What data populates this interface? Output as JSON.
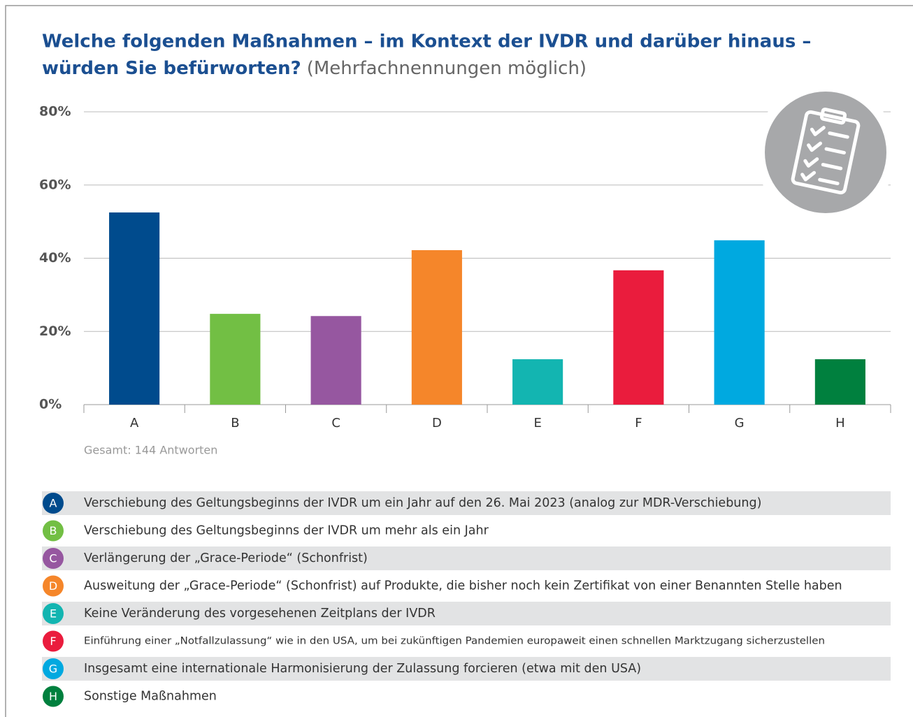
{
  "chart_data": {
    "type": "bar",
    "title": "Welche folgenden Maßnahmen – im Kontext der IVDR und darüber hinaus – würden Sie befürworten?",
    "title_lines": [
      "Welche folgenden Maßnahmen – im Kontext der IVDR und darüber hinaus –",
      "würden Sie befürworten?"
    ],
    "subtitle": "(Mehrfachnennungen möglich)",
    "categories": [
      "A",
      "B",
      "C",
      "D",
      "E",
      "F",
      "G",
      "H"
    ],
    "values": [
      52.5,
      24.8,
      24.2,
      42.2,
      12.4,
      36.7,
      44.9,
      12.4
    ],
    "colors": [
      "#004b8d",
      "#72bf44",
      "#9657a0",
      "#f5862a",
      "#13b5b1",
      "#ea1c3d",
      "#00a9e0",
      "#00803e"
    ],
    "ylim": [
      0,
      80
    ],
    "yticks": [
      {
        "value": 0,
        "label": "0%"
      },
      {
        "value": 20,
        "label": "20%"
      },
      {
        "value": 40,
        "label": "40%"
      },
      {
        "value": 60,
        "label": "60%"
      },
      {
        "value": 80,
        "label": "80%"
      }
    ],
    "grid": true,
    "annotation": "Gesamt: 144 Antworten",
    "legend_labels": [
      "Verschiebung des Geltungsbeginns der IVDR um ein Jahr auf den 26. Mai 2023 (analog zur MDR-Verschiebung)",
      "Verschiebung des Geltungsbeginns der IVDR um mehr als ein Jahr",
      "Verlängerung der „Grace-Periode“ (Schonfrist)",
      "Ausweitung der „Grace-Periode“ (Schonfrist) auf Produkte, die bisher noch kein Zertifikat von einer Benannten Stelle haben",
      "Keine Veränderung des vorgesehenen Zeitplans der IVDR",
      "Einführung einer „Notfallzulassung“ wie in den USA, um bei zukünftigen Pandemien europaweit einen schnellen Marktzugang sicherzustellen",
      "Insgesamt eine internationale Harmonisierung der Zulassung forcieren (etwa mit den USA)",
      "Sonstige Maßnahmen"
    ]
  }
}
